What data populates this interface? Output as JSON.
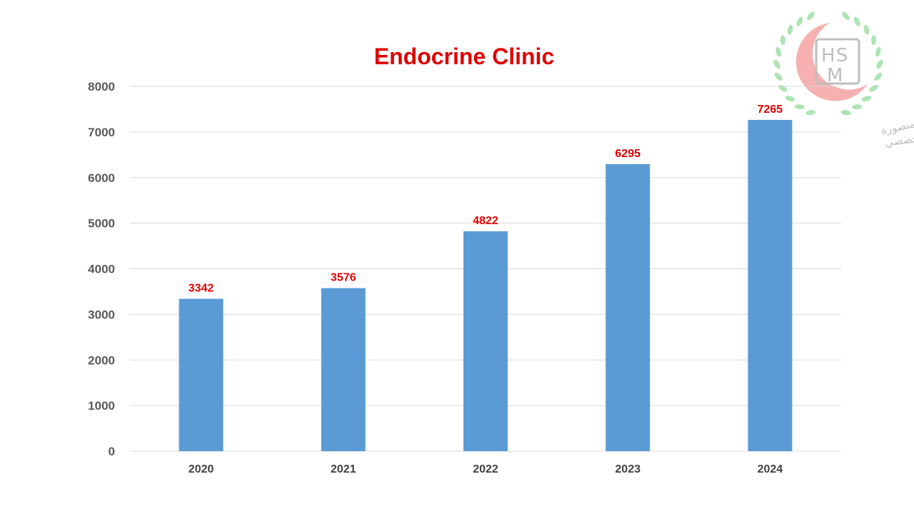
{
  "colors": {
    "bar": "#5b9bd5",
    "title": "#e00000",
    "data_label": "#e00000",
    "grid": "#d9d9d9",
    "logo_crescent": "#f5a3a3",
    "logo_wreath": "#9fe0a8"
  },
  "logo": {
    "letters": [
      "H",
      "S",
      "M"
    ],
    "arabic_line1": "جامعة المنصورة",
    "arabic_line2": "مستشفى الباطنة التخصصي"
  },
  "chart_data": {
    "type": "bar",
    "title": "Endocrine Clinic",
    "categories": [
      "2020",
      "2021",
      "2022",
      "2023",
      "2024"
    ],
    "values": [
      3342,
      3576,
      4822,
      6295,
      7265
    ],
    "ylim": [
      0,
      8000
    ],
    "yticks": [
      "0",
      "1000",
      "2000",
      "3000",
      "4000",
      "5000",
      "6000",
      "7000",
      "8000"
    ],
    "grid": true,
    "legend": "none",
    "data_labels": true
  }
}
